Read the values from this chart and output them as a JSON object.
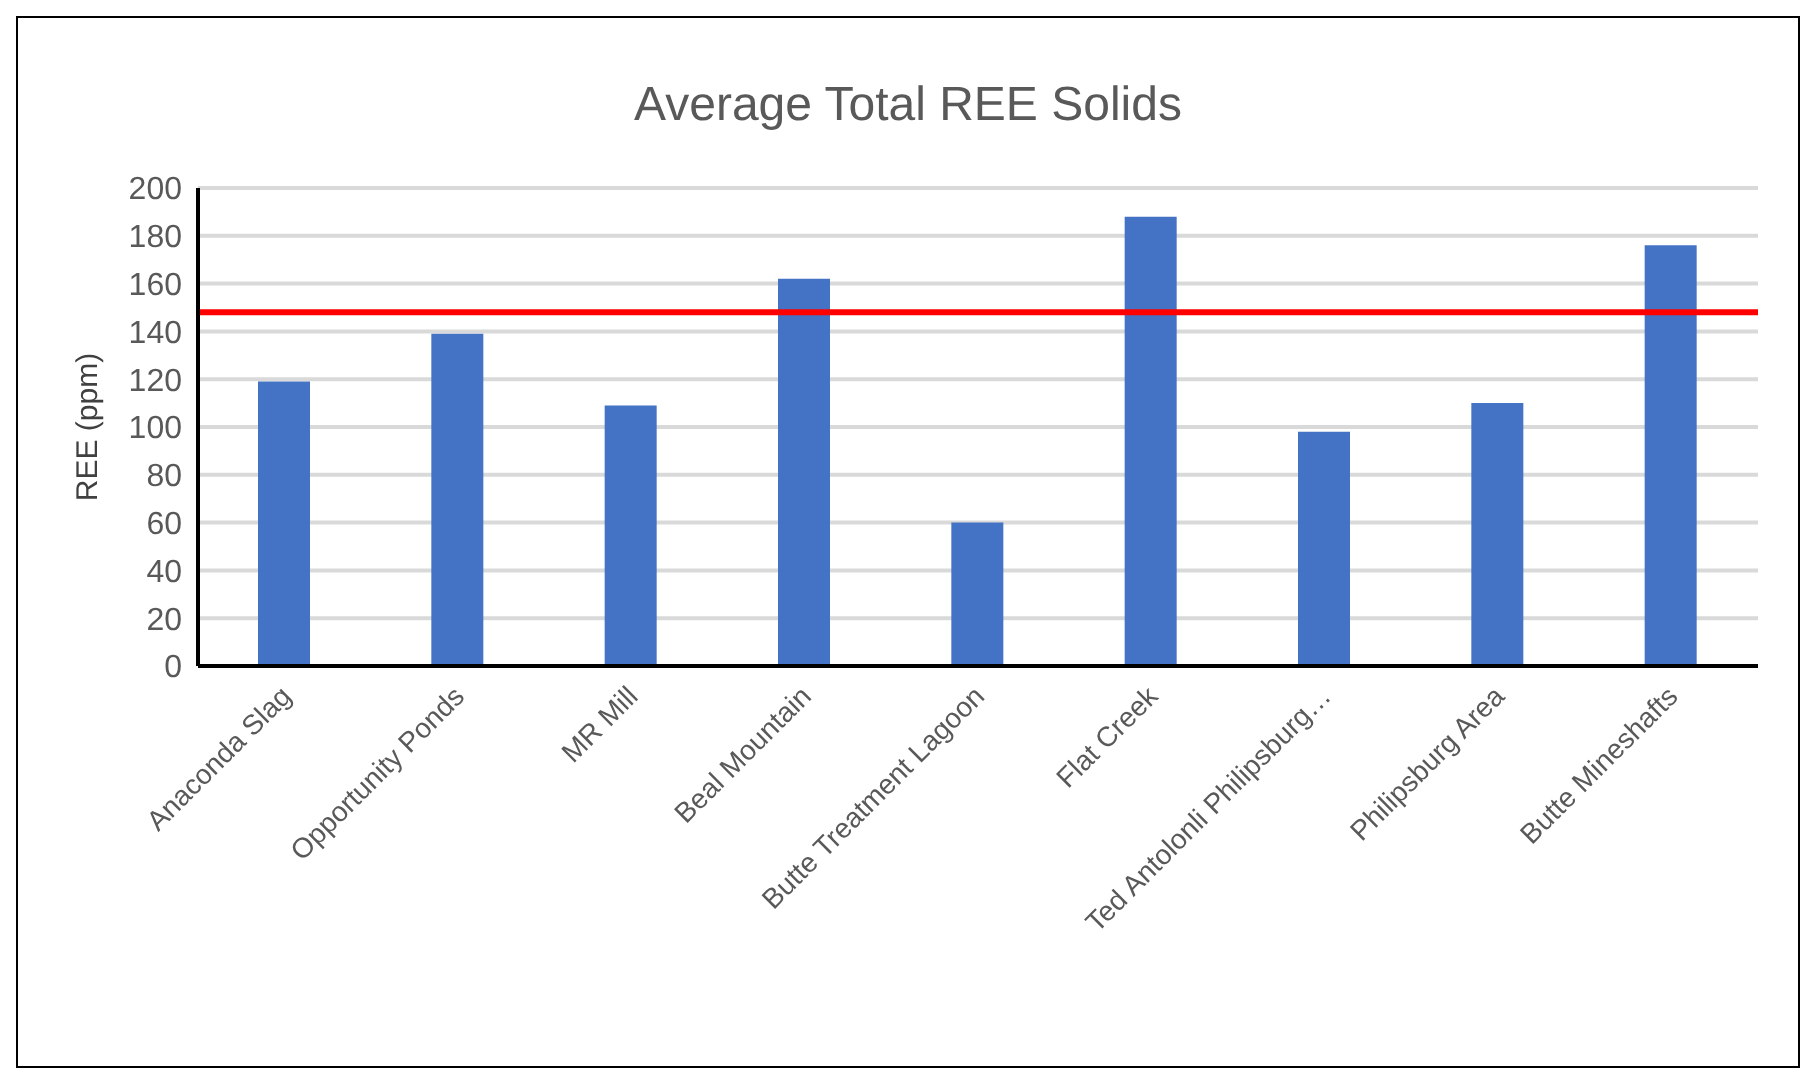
{
  "chart_data": {
    "type": "bar",
    "title": "Average Total REE Solids",
    "ylabel": "REE (ppm)",
    "categories": [
      "Anaconda Slag",
      "Opportunity Ponds",
      "MR Mill",
      "Beal Mountain",
      "Butte Treatment Lagoon",
      "Flat Creek",
      "Ted Antolonli Philipsburg…",
      "Philipsburg Area",
      "Butte Mineshafts"
    ],
    "values": [
      119,
      139,
      109,
      162,
      60,
      188,
      98,
      110,
      176
    ],
    "color": "#4472c4",
    "ylim": [
      0,
      200
    ],
    "yticks": [
      0,
      20,
      40,
      60,
      80,
      100,
      120,
      140,
      160,
      180,
      200
    ],
    "grid": "y",
    "ref_lines": [
      {
        "axis": "y",
        "value": 148,
        "color": "#ff0000"
      }
    ]
  }
}
